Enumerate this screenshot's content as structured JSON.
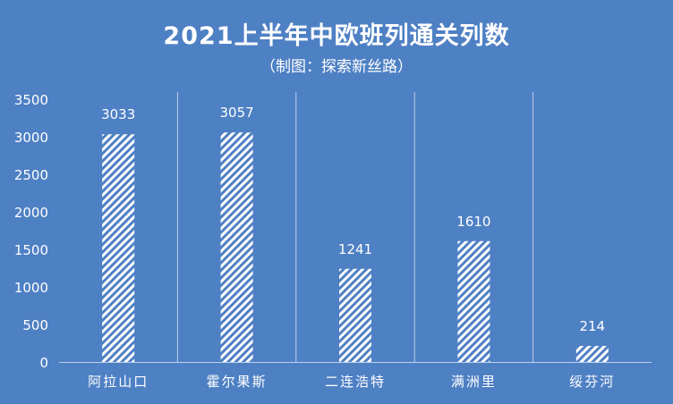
{
  "chart_data": {
    "type": "bar",
    "title": "2021上半年中欧班列通关列数",
    "subtitle": "（制图：探索新丝路）",
    "categories": [
      "阿拉山口",
      "霍尔果斯",
      "二连浩特",
      "满洲里",
      "绥芬河"
    ],
    "values": [
      3033,
      3057,
      1241,
      1610,
      214
    ],
    "data_labels": [
      "3033",
      "3057",
      "1241",
      "1610",
      "214"
    ],
    "y_ticks": [
      "0",
      "500",
      "1000",
      "1500",
      "2000",
      "2500",
      "3000",
      "3500"
    ],
    "ylim": [
      0,
      3500
    ],
    "grid": "vertical separators",
    "legend": "none",
    "bar_fill": "diagonal white hatch",
    "colors": {
      "background": "#4e80c4",
      "text": "#ffffff",
      "bar": "#ffffff",
      "axis": "#bcd0ea"
    }
  }
}
